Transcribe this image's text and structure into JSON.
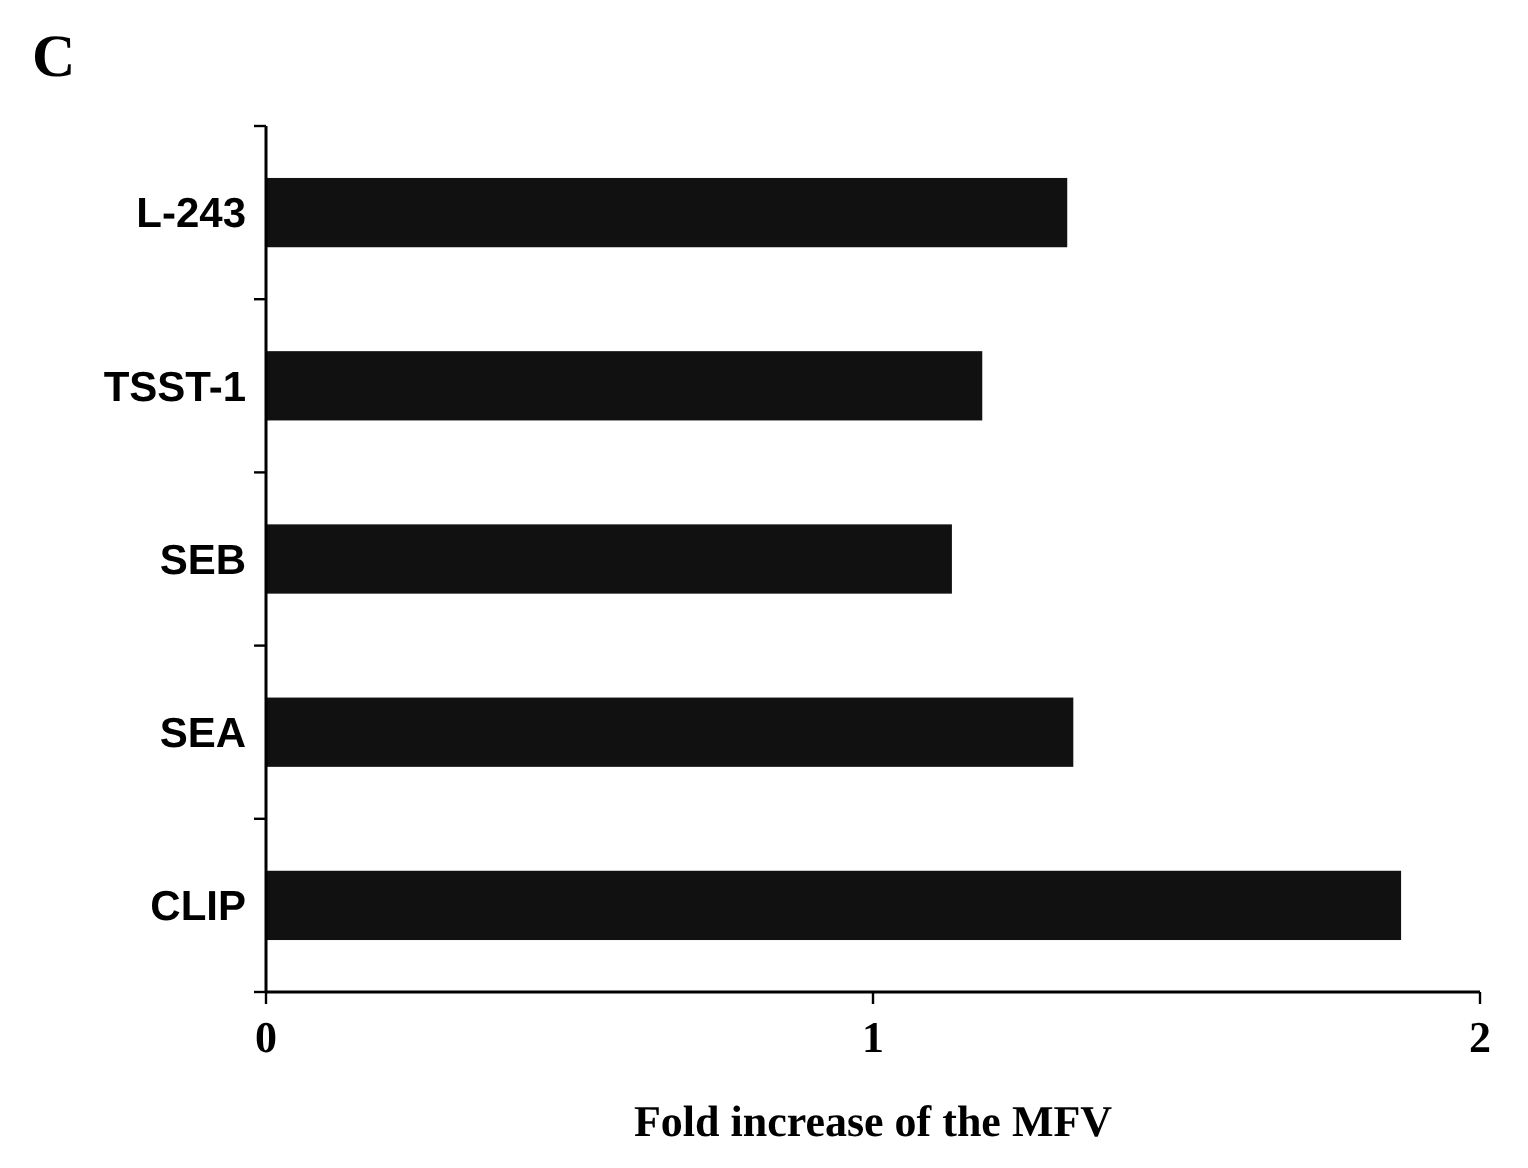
{
  "chart_data": {
    "type": "bar",
    "orientation": "horizontal",
    "title": "C",
    "xlabel": "Fold increase of the MFV",
    "categories": [
      "L-243",
      "TSST-1",
      "SEB",
      "SEA",
      "CLIP"
    ],
    "values": [
      1.32,
      1.18,
      1.13,
      1.33,
      1.87
    ],
    "color": "#111111",
    "xlim": [
      0,
      2
    ],
    "xticks": [
      0,
      1,
      2
    ],
    "grid": false
  }
}
